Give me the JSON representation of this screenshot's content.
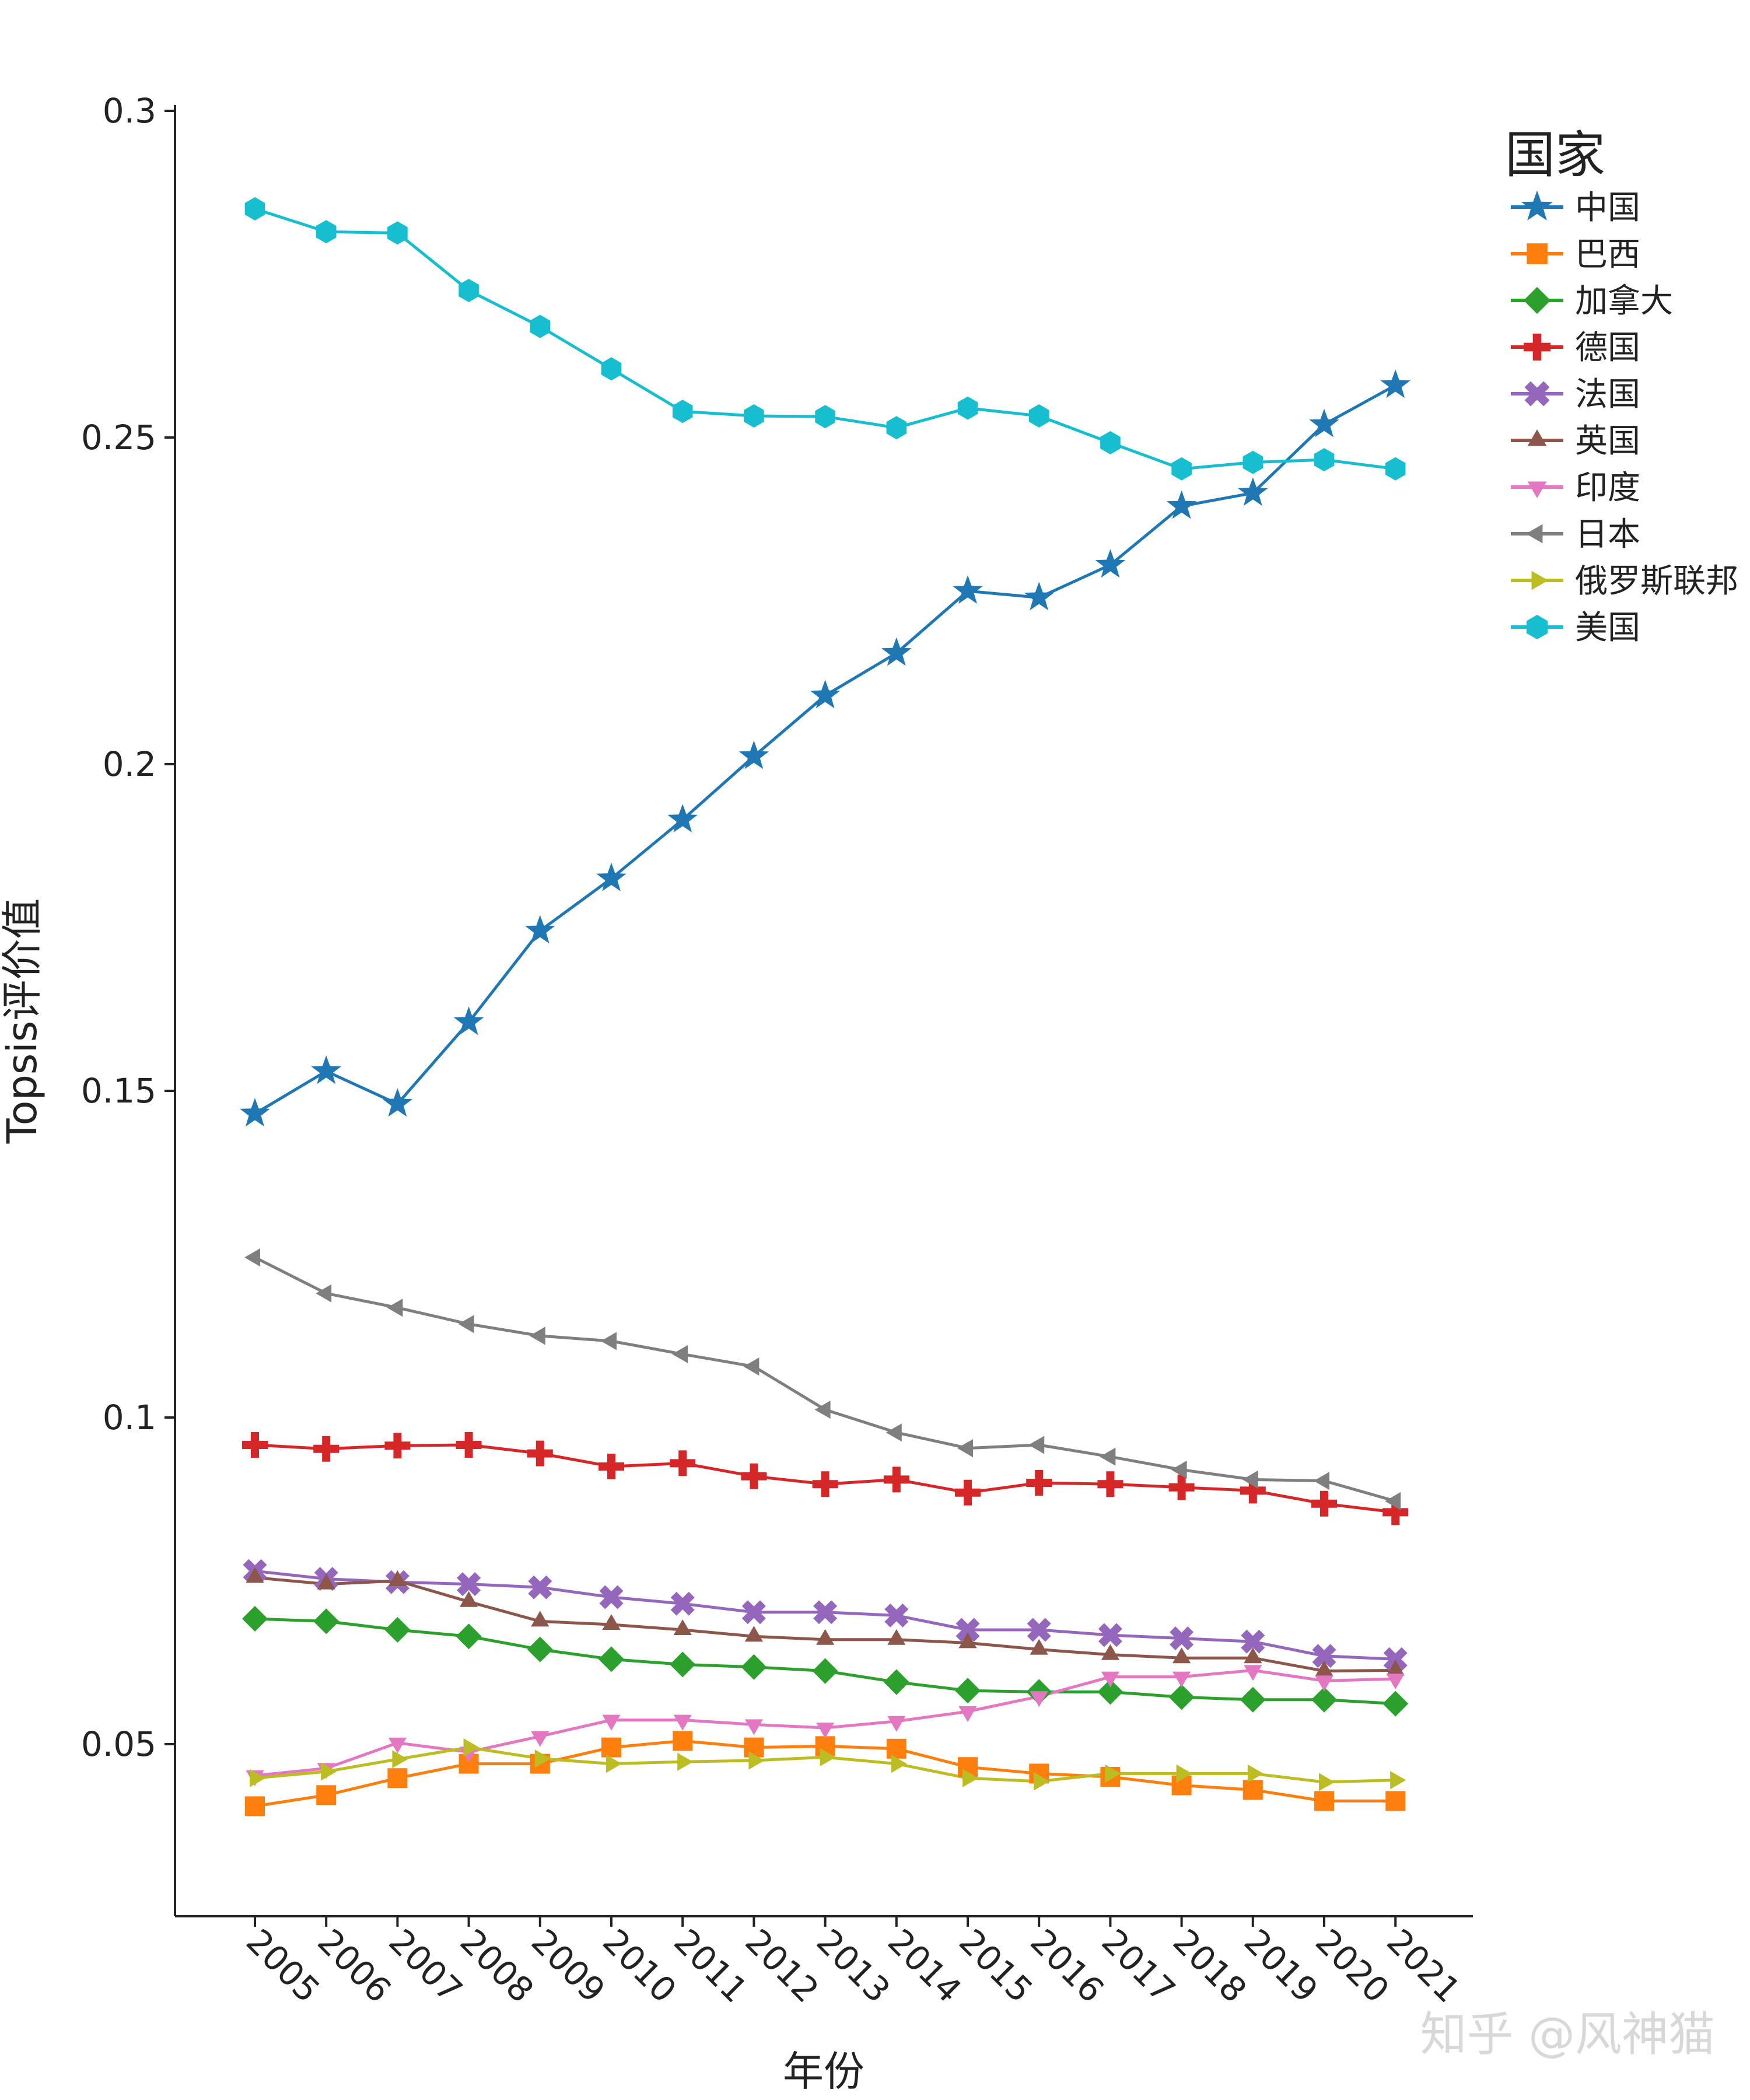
{
  "chart_data": {
    "type": "line",
    "title": "",
    "xlabel": "年份",
    "ylabel": "Topsis评价值",
    "ylim": [
      0.026,
      0.3
    ],
    "yticks": [
      "0.05",
      "0.1",
      "0.15",
      "0.2",
      "0.25",
      "0.3"
    ],
    "categories": [
      "2005",
      "2006",
      "2007",
      "2008",
      "2009",
      "2010",
      "2011",
      "2012",
      "2013",
      "2014",
      "2015",
      "2016",
      "2017",
      "2018",
      "2019",
      "2020",
      "2021"
    ],
    "grid": false,
    "legend_title": "国家",
    "legend_position": "top-right",
    "series": [
      {
        "name": "中国",
        "color": "#1f77b4",
        "marker": "star",
        "values": [
          0.1465,
          0.153,
          0.148,
          0.1605,
          0.1745,
          0.1825,
          0.1915,
          0.2012,
          0.2105,
          0.217,
          0.2265,
          0.2255,
          0.2305,
          0.2395,
          0.2415,
          0.252,
          0.258
        ]
      },
      {
        "name": "巴西",
        "color": "#ff7f0e",
        "marker": "square",
        "values": [
          0.0405,
          0.0422,
          0.0448,
          0.047,
          0.047,
          0.0495,
          0.0505,
          0.0495,
          0.0497,
          0.0493,
          0.0465,
          0.0455,
          0.045,
          0.0437,
          0.043,
          0.0413,
          0.0413
        ]
      },
      {
        "name": "加拿大",
        "color": "#2ca02c",
        "marker": "diamond",
        "values": [
          0.0692,
          0.0688,
          0.0675,
          0.0665,
          0.0645,
          0.063,
          0.0622,
          0.0618,
          0.0612,
          0.0595,
          0.0582,
          0.058,
          0.058,
          0.0572,
          0.0568,
          0.0568,
          0.0562
        ]
      },
      {
        "name": "德国",
        "color": "#d62728",
        "marker": "plus",
        "values": [
          0.0958,
          0.0952,
          0.0957,
          0.0958,
          0.0945,
          0.0925,
          0.093,
          0.091,
          0.0898,
          0.0905,
          0.0885,
          0.09,
          0.0898,
          0.0893,
          0.0888,
          0.0868,
          0.0855
        ]
      },
      {
        "name": "法国",
        "color": "#9467bd",
        "marker": "x",
        "values": [
          0.0765,
          0.0753,
          0.0748,
          0.0745,
          0.074,
          0.0725,
          0.0715,
          0.0702,
          0.0702,
          0.0697,
          0.0675,
          0.0675,
          0.0667,
          0.0662,
          0.0657,
          0.0635,
          0.063
        ]
      },
      {
        "name": "英国",
        "color": "#8c564b",
        "marker": "triangle-up",
        "values": [
          0.0755,
          0.0745,
          0.075,
          0.0718,
          0.0688,
          0.0683,
          0.0675,
          0.0665,
          0.066,
          0.066,
          0.0655,
          0.0645,
          0.0637,
          0.0632,
          0.0632,
          0.0612,
          0.0613
        ]
      },
      {
        "name": "印度",
        "color": "#e377c2",
        "marker": "triangle-down",
        "values": [
          0.0452,
          0.0463,
          0.0502,
          0.0488,
          0.0512,
          0.0537,
          0.0537,
          0.053,
          0.0525,
          0.0535,
          0.055,
          0.0573,
          0.0603,
          0.0603,
          0.0613,
          0.0597,
          0.06
        ]
      },
      {
        "name": "日本",
        "color": "#7f7f7f",
        "marker": "triangle-left",
        "values": [
          0.1245,
          0.119,
          0.1168,
          0.1143,
          0.1125,
          0.1117,
          0.1097,
          0.1078,
          0.1012,
          0.0977,
          0.0953,
          0.0958,
          0.094,
          0.092,
          0.0905,
          0.0903,
          0.0872
        ]
      },
      {
        "name": "俄罗斯联邦",
        "color": "#bcbd22",
        "marker": "triangle-right",
        "values": [
          0.0448,
          0.0458,
          0.0477,
          0.0495,
          0.0478,
          0.047,
          0.0473,
          0.0475,
          0.048,
          0.047,
          0.0448,
          0.0443,
          0.0455,
          0.0455,
          0.0455,
          0.0442,
          0.0445
        ]
      },
      {
        "name": "美国",
        "color": "#17becf",
        "marker": "hexagon",
        "values": [
          0.285,
          0.2815,
          0.2813,
          0.2725,
          0.267,
          0.2605,
          0.254,
          0.2533,
          0.2532,
          0.2515,
          0.2545,
          0.2533,
          0.2492,
          0.2452,
          0.2462,
          0.2466,
          0.2452
        ]
      }
    ]
  },
  "watermark": "知乎 @风神猫"
}
